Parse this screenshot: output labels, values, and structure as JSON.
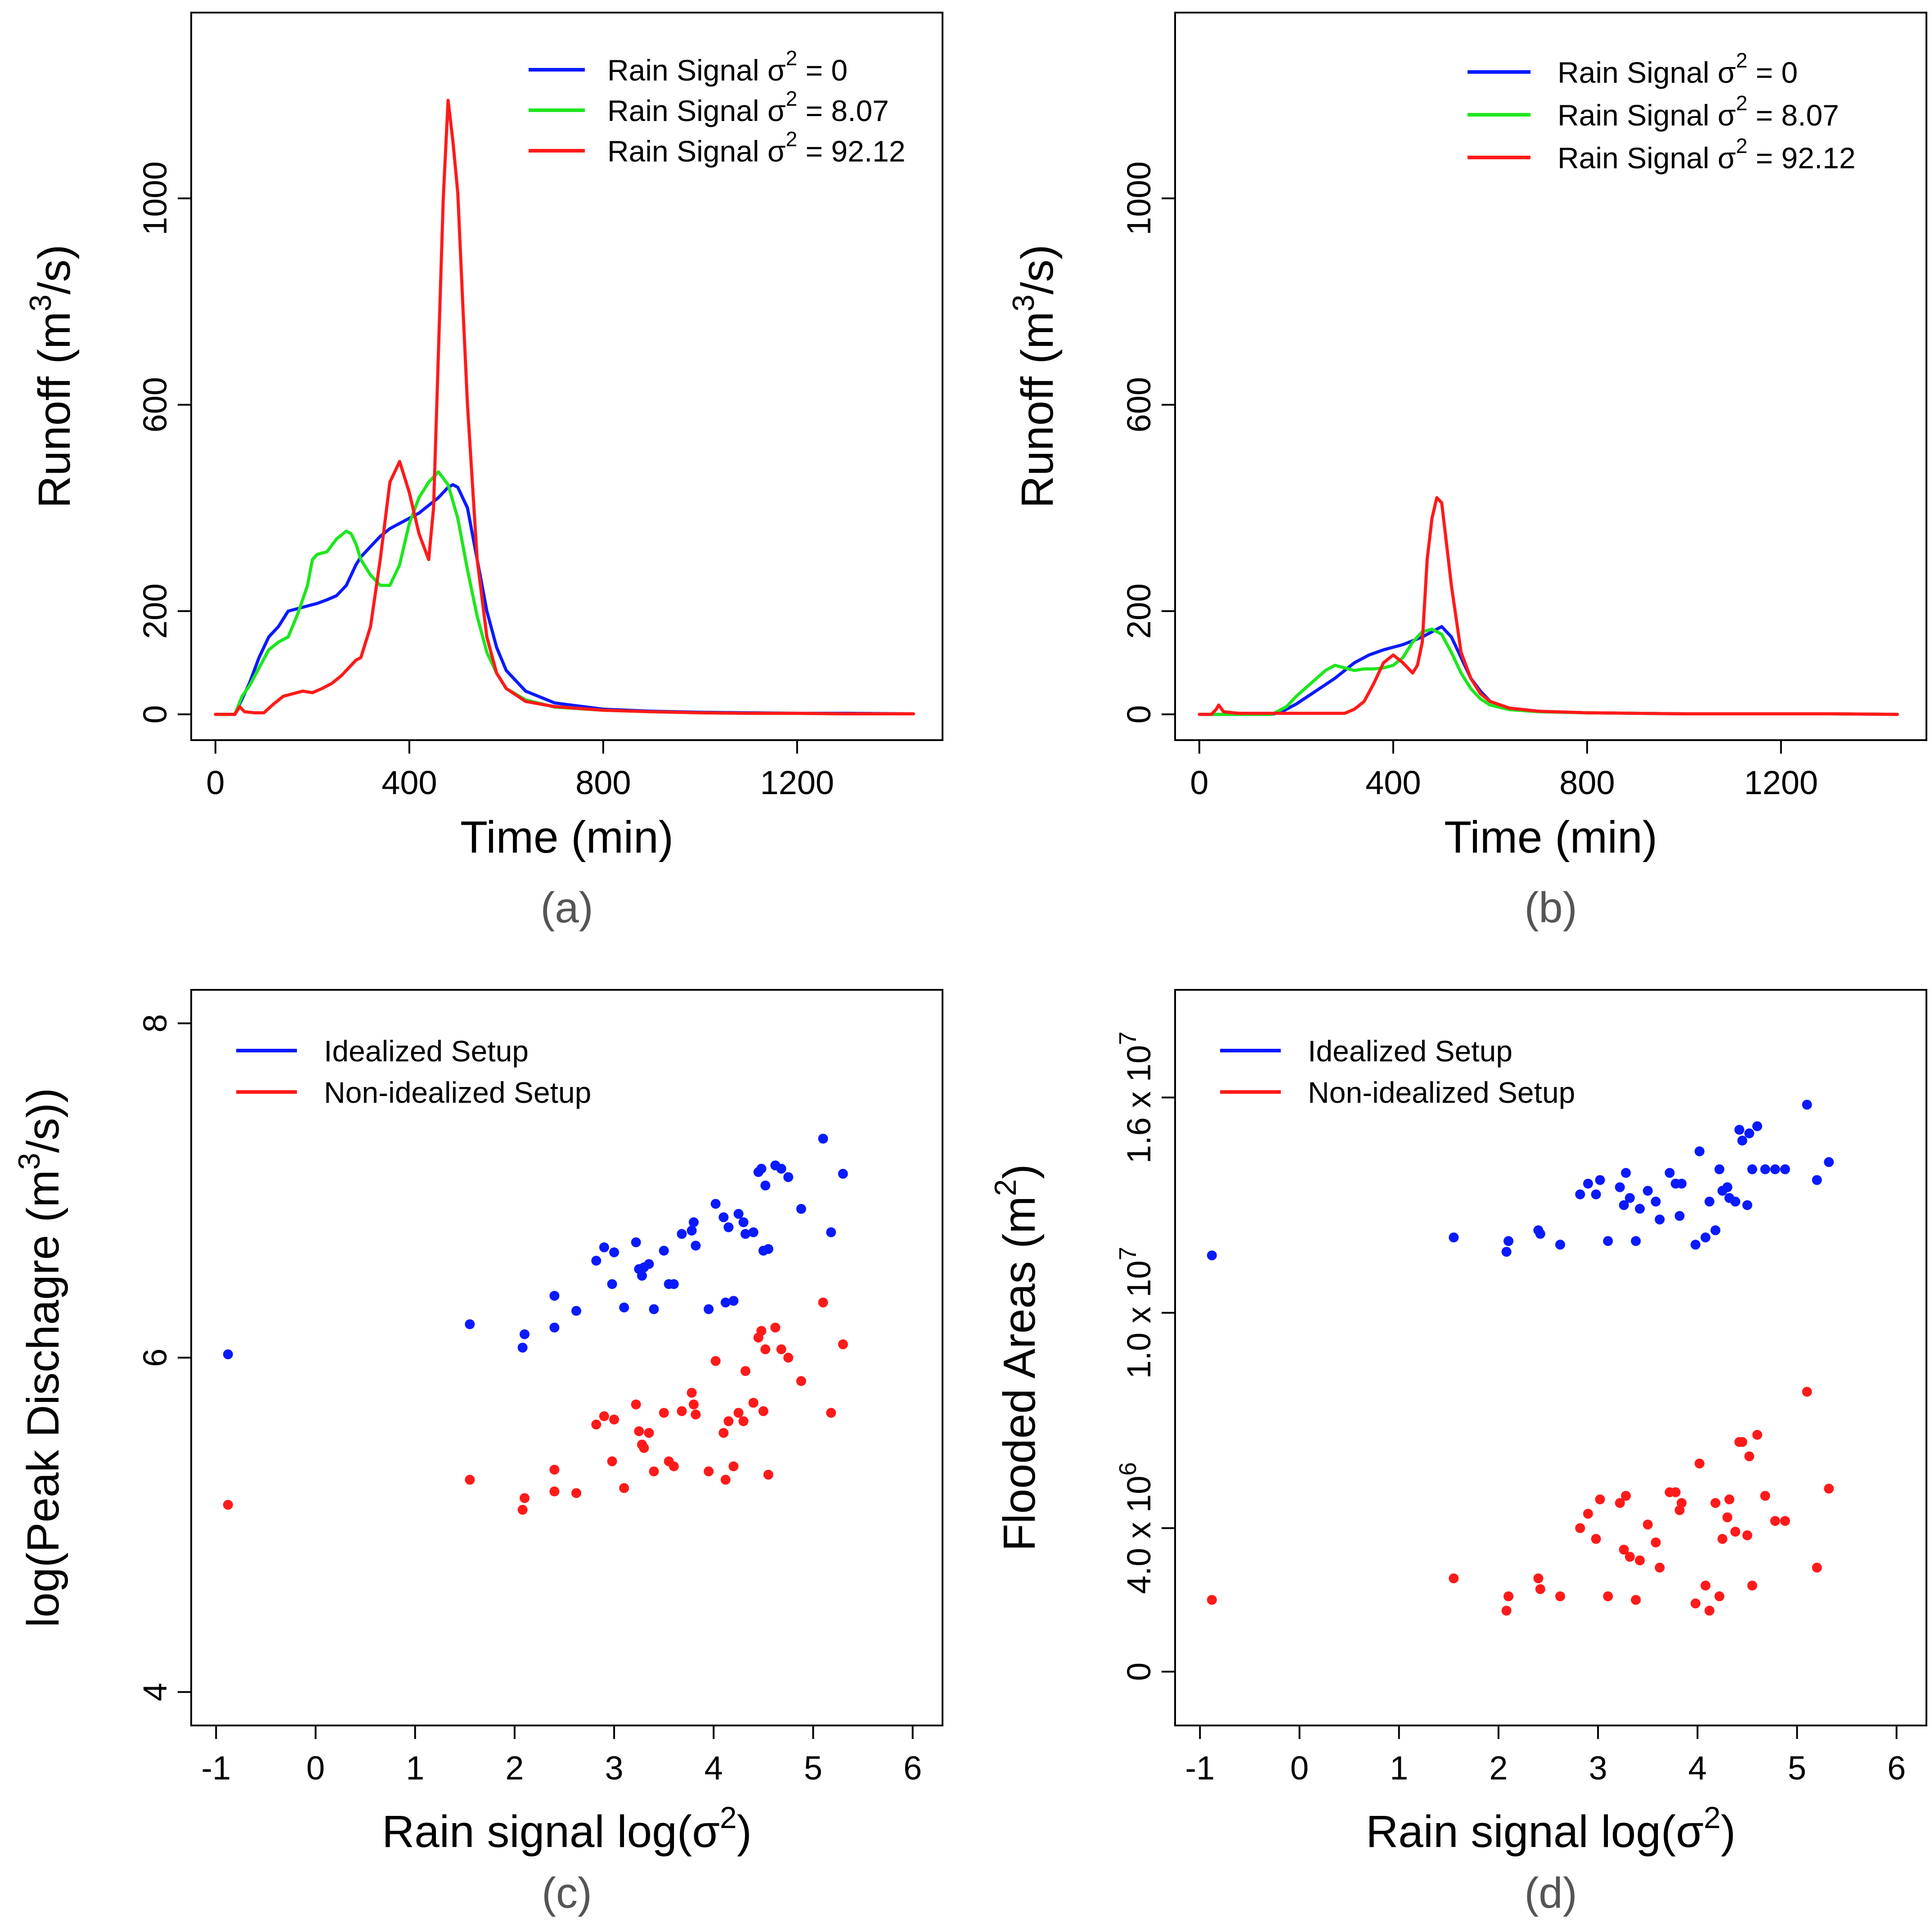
{
  "colors": {
    "blue": "#0a1aff",
    "green": "#1ee61e",
    "red": "#ff1a1a"
  },
  "chart_data": [
    {
      "id": "a",
      "type": "line",
      "panel_label": "(a)",
      "xlabel": "Time (min)",
      "ylabel": "Runoff (m",
      "ylabel_sup": "3",
      "ylabel_mid": "/",
      "ylabel_end": "s)",
      "xlim": [
        -50,
        1500
      ],
      "ylim": [
        -50,
        1360
      ],
      "xticks": [
        0,
        400,
        800,
        1200
      ],
      "yticks": [
        0,
        200,
        600,
        1000
      ],
      "legend_position": "top-right",
      "series": [
        {
          "name": "Rain Signal σ² = 0",
          "label_main": "Rain Signal σ",
          "label_sup": "2",
          "label_end": " = 0",
          "color": "blue",
          "x": [
            0,
            40,
            55,
            70,
            90,
            110,
            130,
            150,
            170,
            190,
            210,
            230,
            250,
            270,
            290,
            300,
            320,
            340,
            360,
            380,
            400,
            420,
            440,
            460,
            480,
            490,
            500,
            520,
            540,
            560,
            580,
            600,
            640,
            700,
            800,
            900,
            1000,
            1100,
            1200,
            1300,
            1440
          ],
          "y": [
            0,
            0,
            30,
            60,
            110,
            150,
            170,
            200,
            205,
            210,
            215,
            222,
            230,
            250,
            290,
            305,
            325,
            345,
            360,
            370,
            380,
            390,
            405,
            420,
            440,
            445,
            440,
            400,
            300,
            200,
            130,
            85,
            45,
            22,
            10,
            6,
            4,
            3,
            2,
            2,
            1
          ]
        },
        {
          "name": "Rain Signal σ² = 8.07",
          "label_main": "Rain Signal σ",
          "label_sup": "2",
          "label_end": " = 8.07",
          "color": "green",
          "x": [
            0,
            40,
            55,
            70,
            90,
            110,
            130,
            150,
            170,
            190,
            200,
            210,
            230,
            250,
            270,
            280,
            290,
            300,
            320,
            340,
            360,
            380,
            400,
            420,
            440,
            460,
            480,
            500,
            520,
            540,
            560,
            580,
            600,
            640,
            700,
            800,
            900,
            1000,
            1100,
            1200,
            1300,
            1440
          ],
          "y": [
            0,
            0,
            35,
            55,
            90,
            125,
            140,
            150,
            195,
            250,
            300,
            310,
            315,
            340,
            355,
            350,
            330,
            300,
            270,
            250,
            250,
            290,
            370,
            420,
            450,
            470,
            445,
            380,
            280,
            190,
            120,
            80,
            50,
            28,
            14,
            8,
            5,
            3,
            2,
            2,
            1,
            1
          ]
        },
        {
          "name": "Rain Signal σ² = 92.12",
          "label_main": "Rain Signal σ",
          "label_sup": "2",
          "label_end": " = 92.12",
          "color": "red",
          "x": [
            0,
            40,
            50,
            60,
            80,
            100,
            120,
            140,
            160,
            180,
            200,
            220,
            240,
            260,
            280,
            290,
            300,
            320,
            340,
            360,
            380,
            400,
            420,
            440,
            450,
            460,
            470,
            480,
            490,
            500,
            510,
            520,
            540,
            560,
            580,
            600,
            640,
            700,
            800,
            900,
            1000,
            1100,
            1200,
            1300,
            1440
          ],
          "y": [
            0,
            0,
            15,
            5,
            3,
            3,
            20,
            35,
            40,
            45,
            42,
            50,
            60,
            75,
            95,
            105,
            110,
            170,
            300,
            450,
            490,
            430,
            350,
            300,
            400,
            700,
            1000,
            1190,
            1110,
            1010,
            800,
            600,
            300,
            150,
            80,
            50,
            25,
            15,
            8,
            5,
            3,
            2,
            2,
            1,
            1
          ]
        }
      ]
    },
    {
      "id": "b",
      "type": "line",
      "panel_label": "(b)",
      "xlabel": "Time (min)",
      "ylabel": "Runoff (m",
      "ylabel_sup": "3",
      "ylabel_mid": "/",
      "ylabel_end": "s)",
      "xlim": [
        -50,
        1500
      ],
      "ylim": [
        -50,
        1360
      ],
      "xticks": [
        0,
        400,
        800,
        1200
      ],
      "yticks": [
        0,
        200,
        600,
        1000
      ],
      "legend_position": "top-right",
      "series": [
        {
          "name": "Rain Signal σ² = 0",
          "label_main": "Rain Signal σ",
          "label_sup": "2",
          "label_end": " = 0",
          "color": "blue",
          "x": [
            0,
            150,
            170,
            200,
            240,
            280,
            320,
            350,
            380,
            420,
            460,
            480,
            500,
            520,
            540,
            560,
            580,
            600,
            640,
            700,
            800,
            900,
            1000,
            1100,
            1200,
            1300,
            1440
          ],
          "y": [
            0,
            0,
            5,
            20,
            45,
            70,
            100,
            115,
            125,
            135,
            150,
            160,
            170,
            150,
            110,
            70,
            45,
            25,
            12,
            6,
            3,
            2,
            1,
            1,
            1,
            1,
            0
          ]
        },
        {
          "name": "Rain Signal σ² = 8.07",
          "label_main": "Rain Signal σ",
          "label_sup": "2",
          "label_end": " = 8.07",
          "color": "green",
          "x": [
            0,
            150,
            180,
            200,
            230,
            260,
            280,
            300,
            320,
            340,
            360,
            380,
            400,
            420,
            440,
            460,
            480,
            500,
            520,
            540,
            560,
            580,
            600,
            640,
            700,
            800,
            900,
            1000,
            1100,
            1200,
            1300,
            1440
          ],
          "y": [
            0,
            0,
            15,
            35,
            60,
            85,
            95,
            90,
            85,
            88,
            88,
            90,
            95,
            110,
            140,
            160,
            165,
            155,
            120,
            80,
            50,
            30,
            18,
            9,
            5,
            3,
            2,
            1,
            1,
            1,
            1,
            0
          ]
        },
        {
          "name": "Rain Signal σ² = 92.12",
          "label_main": "Rain Signal σ",
          "label_sup": "2",
          "label_end": " = 92.12",
          "color": "red",
          "x": [
            0,
            25,
            35,
            40,
            50,
            80,
            150,
            300,
            320,
            340,
            360,
            380,
            400,
            420,
            440,
            450,
            460,
            470,
            480,
            490,
            500,
            510,
            520,
            540,
            560,
            580,
            600,
            640,
            700,
            800,
            900,
            1000,
            1100,
            1200,
            1300,
            1440
          ],
          "y": [
            0,
            0,
            10,
            18,
            5,
            2,
            2,
            2,
            10,
            25,
            60,
            100,
            115,
            100,
            80,
            95,
            140,
            300,
            380,
            420,
            410,
            330,
            250,
            120,
            70,
            40,
            25,
            12,
            6,
            3,
            2,
            1,
            1,
            1,
            1,
            0
          ]
        }
      ]
    },
    {
      "id": "c",
      "type": "scatter",
      "panel_label": "(c)",
      "xlabel": "Rain signal log(σ",
      "xlabel_sup": "2",
      "xlabel_end": ")",
      "ylabel": "log(Peak Dischagre (m",
      "ylabel_sup": "3",
      "ylabel_mid": "/",
      "ylabel_end": "s))",
      "xlim": [
        -1.25,
        6.3
      ],
      "ylim": [
        3.8,
        8.2
      ],
      "xticks": [
        -1,
        0,
        1,
        2,
        3,
        4,
        5,
        6
      ],
      "yticks": [
        4,
        6,
        8
      ],
      "legend_position": "top-left",
      "series": [
        {
          "name": "Idealized Setup",
          "color": "blue",
          "x": [
            -0.88,
            1.55,
            2.08,
            2.1,
            2.4,
            2.4,
            2.62,
            2.82,
            2.9,
            2.98,
            3.0,
            3.1,
            3.22,
            3.25,
            3.28,
            3.3,
            3.35,
            3.4,
            3.5,
            3.55,
            3.6,
            3.68,
            3.78,
            3.8,
            3.82,
            3.95,
            4.02,
            4.1,
            4.12,
            4.15,
            4.2,
            4.25,
            4.3,
            4.32,
            4.4,
            4.45,
            4.48,
            4.5,
            4.52,
            4.55,
            4.62,
            4.68,
            4.75,
            4.88,
            5.1,
            5.18,
            5.3
          ],
          "y": [
            6.02,
            6.2,
            6.06,
            6.14,
            6.37,
            6.18,
            6.28,
            6.58,
            6.66,
            6.44,
            6.63,
            6.3,
            6.69,
            6.53,
            6.49,
            6.54,
            6.56,
            6.29,
            6.64,
            6.44,
            6.44,
            6.74,
            6.76,
            6.81,
            6.67,
            6.29,
            6.92,
            6.84,
            6.33,
            6.78,
            6.34,
            6.86,
            6.81,
            6.74,
            6.75,
            7.11,
            7.13,
            6.64,
            7.03,
            6.65,
            7.15,
            7.13,
            7.08,
            6.89,
            7.31,
            6.75,
            7.1
          ]
        },
        {
          "name": "Non-idealized Setup",
          "color": "red",
          "x": [
            -0.88,
            1.55,
            2.08,
            2.1,
            2.4,
            2.4,
            2.62,
            2.82,
            2.9,
            2.98,
            3.0,
            3.1,
            3.22,
            3.25,
            3.28,
            3.3,
            3.35,
            3.4,
            3.5,
            3.55,
            3.6,
            3.68,
            3.78,
            3.8,
            3.82,
            3.95,
            4.02,
            4.1,
            4.12,
            4.15,
            4.2,
            4.25,
            4.3,
            4.32,
            4.4,
            4.45,
            4.48,
            4.5,
            4.52,
            4.55,
            4.62,
            4.68,
            4.75,
            4.88,
            5.1,
            5.18,
            5.3
          ],
          "y": [
            5.12,
            5.27,
            5.09,
            5.16,
            5.33,
            5.2,
            5.19,
            5.6,
            5.65,
            5.38,
            5.63,
            5.22,
            5.72,
            5.56,
            5.48,
            5.46,
            5.55,
            5.32,
            5.67,
            5.38,
            5.35,
            5.68,
            5.79,
            5.72,
            5.66,
            5.32,
            5.98,
            5.55,
            5.27,
            5.62,
            5.35,
            5.67,
            5.62,
            5.92,
            5.73,
            6.12,
            6.16,
            5.68,
            6.05,
            5.3,
            6.18,
            6.05,
            6.0,
            5.86,
            6.33,
            5.67,
            6.08
          ]
        }
      ]
    },
    {
      "id": "d",
      "type": "scatter",
      "panel_label": "(d)",
      "xlabel": "Rain signal log(σ",
      "xlabel_sup": "2",
      "xlabel_end": ")",
      "ylabel": "Flooded Areas (m",
      "ylabel_sup": "2",
      "ylabel_end": ")",
      "xlim": [
        -1.25,
        6.3
      ],
      "ylim": [
        -1500000,
        19000000
      ],
      "xticks": [
        -1,
        0,
        1,
        2,
        3,
        4,
        5,
        6
      ],
      "yticks": [
        0,
        4000000,
        10000000,
        16000000
      ],
      "ytick_labels": [
        {
          "main": "0",
          "exp": ""
        },
        {
          "main": "4.0 x 10",
          "exp": "6"
        },
        {
          "main": "1.0 x 10",
          "exp": "7"
        },
        {
          "main": "1.6 x 10",
          "exp": "7"
        }
      ],
      "legend_position": "top-left",
      "series": [
        {
          "name": "Idealized Setup",
          "color": "blue",
          "x": [
            -0.88,
            1.55,
            2.08,
            2.1,
            2.4,
            2.42,
            2.62,
            2.82,
            2.9,
            2.98,
            3.02,
            3.1,
            3.22,
            3.26,
            3.28,
            3.32,
            3.38,
            3.42,
            3.5,
            3.58,
            3.62,
            3.72,
            3.78,
            3.82,
            3.84,
            3.98,
            4.02,
            4.08,
            4.12,
            4.18,
            4.22,
            4.25,
            4.3,
            4.32,
            4.38,
            4.42,
            4.45,
            4.5,
            4.52,
            4.55,
            4.6,
            4.68,
            4.78,
            4.88,
            5.1,
            5.2,
            5.32
          ],
          "y": [
            11600000,
            12100000,
            11700000,
            12000000,
            12300000,
            12200000,
            11900000,
            13300000,
            13600000,
            13300000,
            13700000,
            12000000,
            13500000,
            13000000,
            13900000,
            13200000,
            12000000,
            12900000,
            13400000,
            13100000,
            12600000,
            13900000,
            13600000,
            12700000,
            13600000,
            11900000,
            14500000,
            12100000,
            13100000,
            12300000,
            14000000,
            13400000,
            13500000,
            13200000,
            13100000,
            15100000,
            14800000,
            13000000,
            15000000,
            14000000,
            15200000,
            14000000,
            14000000,
            14000000,
            15800000,
            13700000,
            14200000
          ]
        },
        {
          "name": "Non-idealized Setup",
          "color": "red",
          "x": [
            -0.88,
            1.55,
            2.08,
            2.1,
            2.4,
            2.42,
            2.62,
            2.82,
            2.9,
            2.98,
            3.02,
            3.1,
            3.22,
            3.26,
            3.28,
            3.32,
            3.38,
            3.42,
            3.5,
            3.58,
            3.62,
            3.72,
            3.78,
            3.82,
            3.84,
            3.98,
            4.02,
            4.08,
            4.12,
            4.18,
            4.22,
            4.25,
            4.3,
            4.32,
            4.38,
            4.42,
            4.45,
            4.5,
            4.52,
            4.55,
            4.6,
            4.68,
            4.78,
            4.88,
            5.1,
            5.2,
            5.32
          ],
          "y": [
            2000000,
            2600000,
            1700000,
            2100000,
            2600000,
            2300000,
            2100000,
            4000000,
            4400000,
            3700000,
            4800000,
            2100000,
            4700000,
            3400000,
            4900000,
            3200000,
            2000000,
            3100000,
            4100000,
            3600000,
            2900000,
            5000000,
            5000000,
            4500000,
            4700000,
            1900000,
            5800000,
            2400000,
            1700000,
            4700000,
            2100000,
            3700000,
            4300000,
            4800000,
            3900000,
            6400000,
            6400000,
            3800000,
            6000000,
            2400000,
            6600000,
            4900000,
            4200000,
            4200000,
            7800000,
            2900000,
            5100000
          ]
        }
      ]
    }
  ]
}
